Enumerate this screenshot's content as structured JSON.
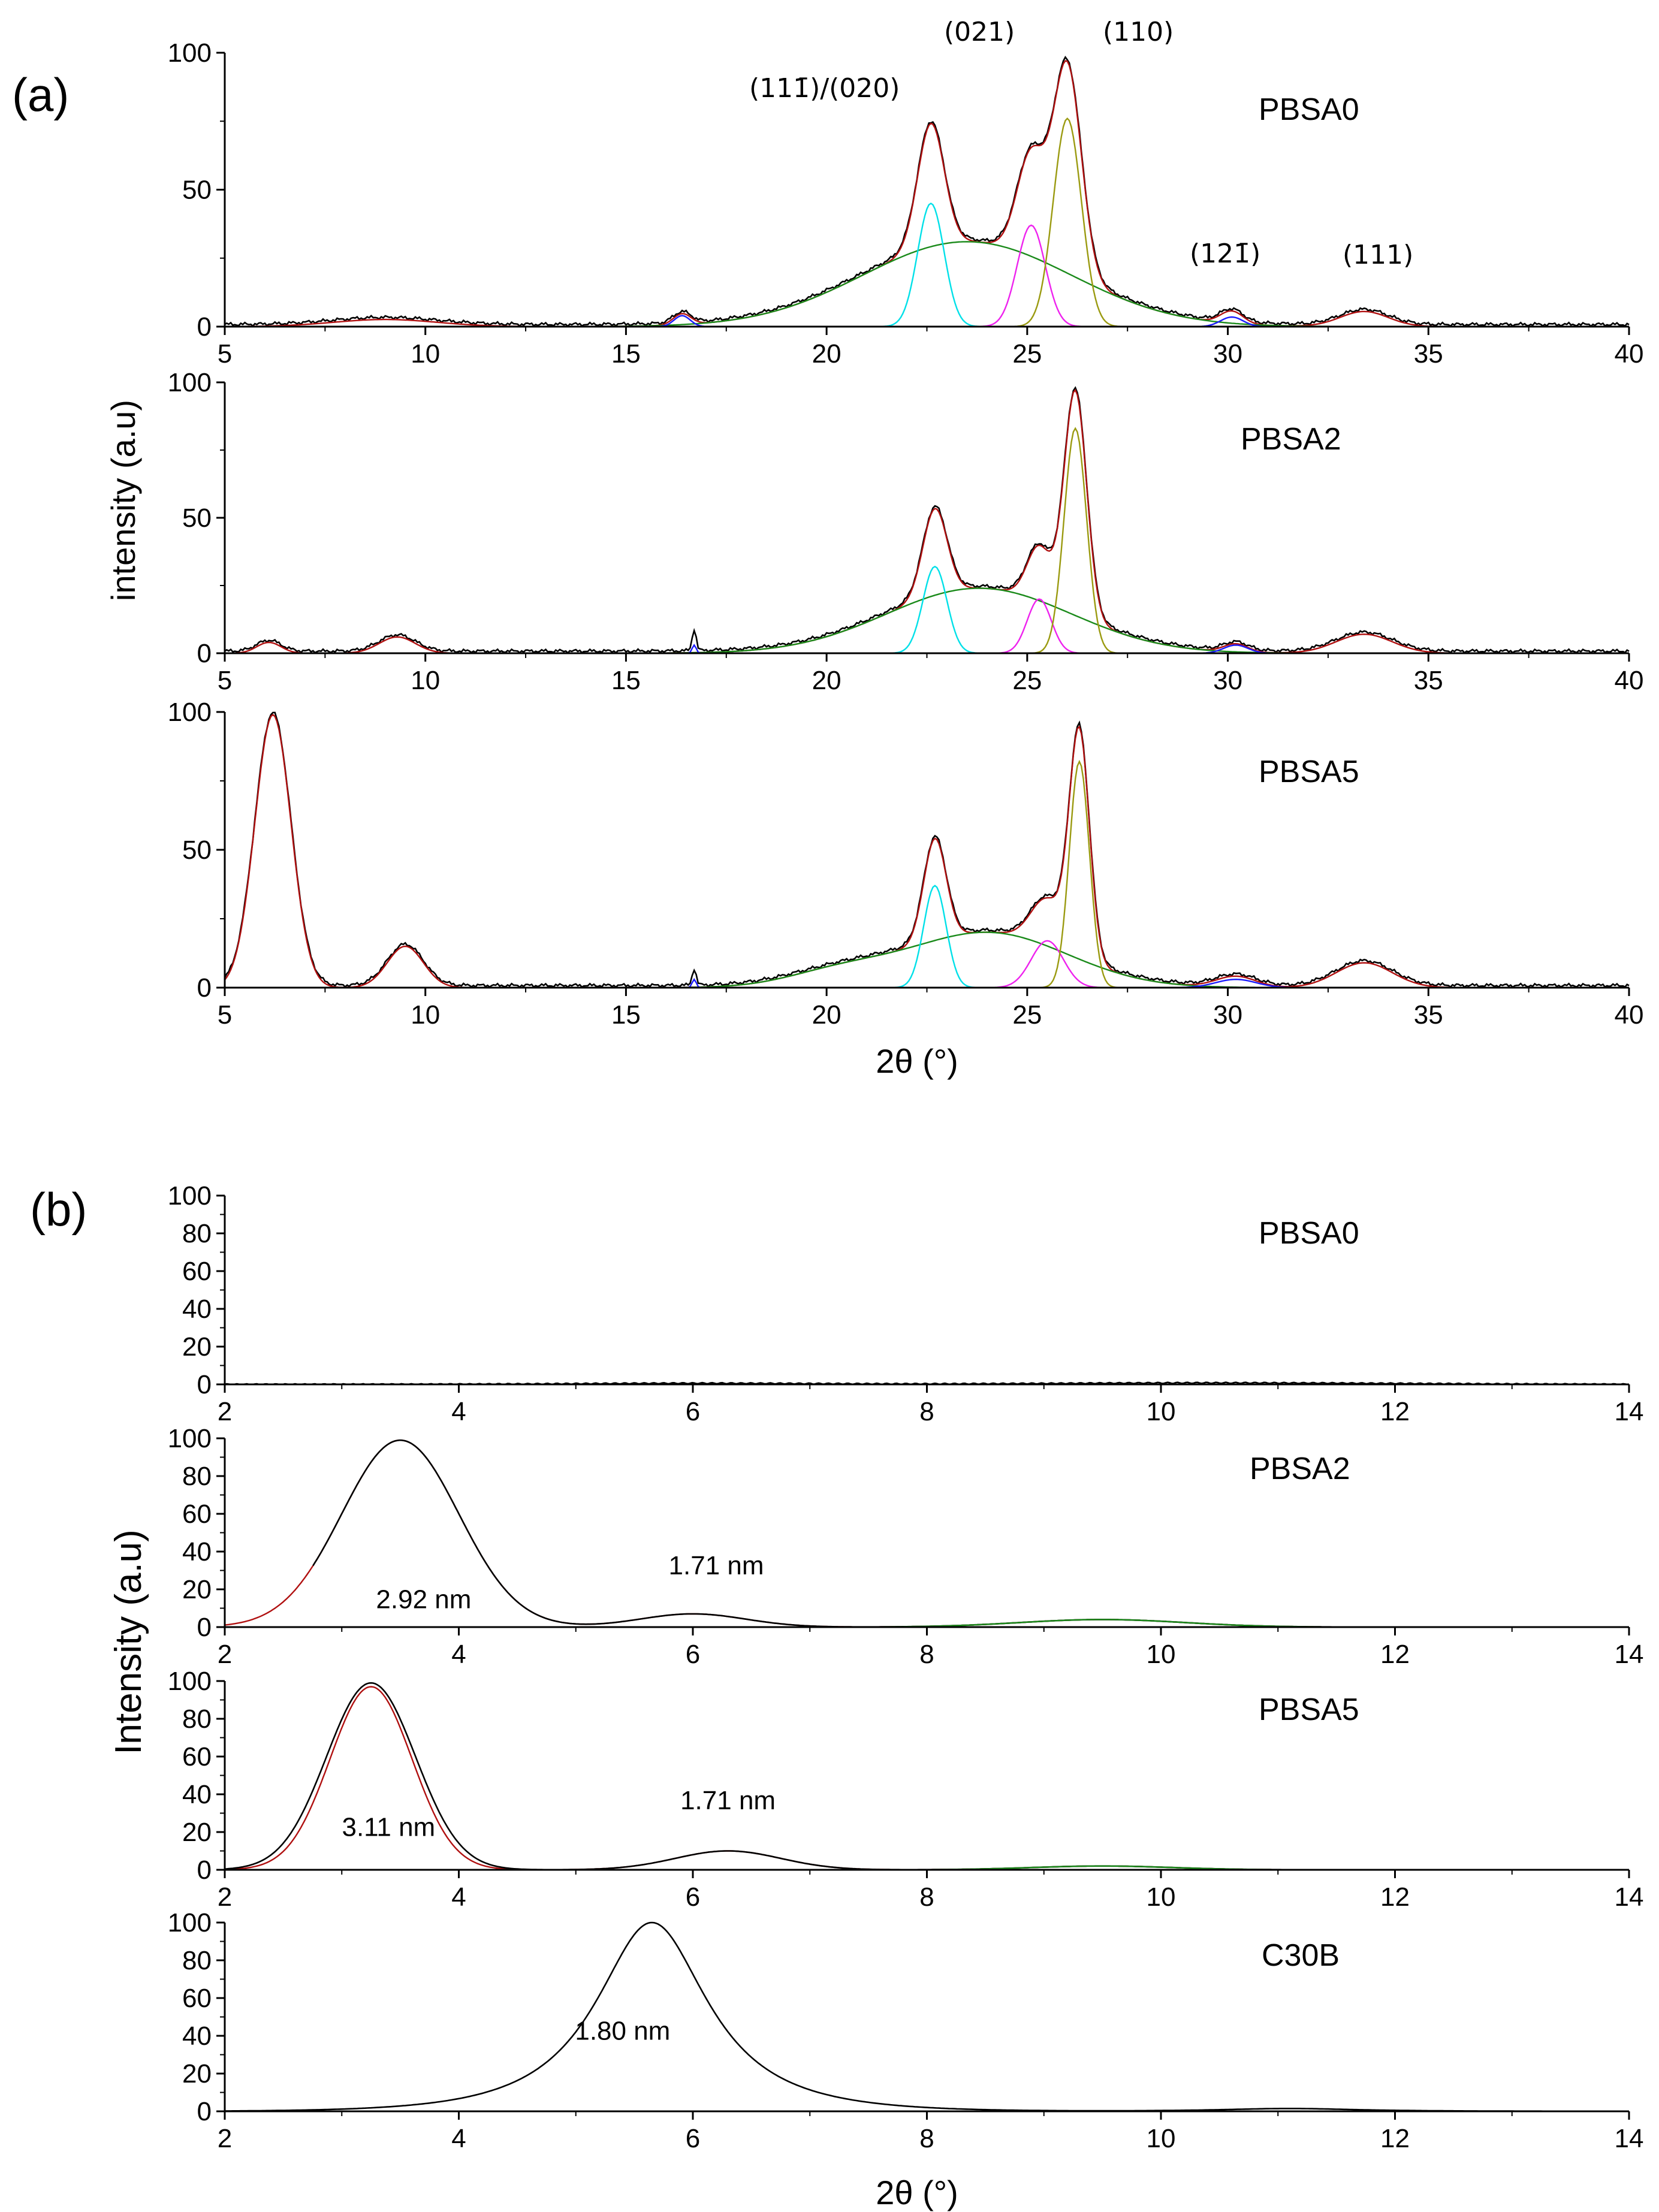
{
  "panel_a": {
    "label": "(a)",
    "ylabel": "intensity (a.u)",
    "xlabel": "2θ (°)",
    "peak_labels": [
      "(111̄)/(020)",
      "(021)",
      "(110)",
      "(121̄)",
      "(111)"
    ]
  },
  "panel_b": {
    "label": "(b)",
    "ylabel": "Intensity (a.u)",
    "xlabel": "2θ (°)"
  },
  "colors": {
    "data": "#000000",
    "fit": "#b01010",
    "amorphous": "#1a8a1a",
    "cyan": "#00e0e8",
    "magenta": "#ee22ee",
    "olive": "#9a9a10",
    "blue": "#1a1aff",
    "purple": "#8a1aa0"
  },
  "chart_data": [
    {
      "type": "line",
      "title": "PBSA0",
      "panel": "a",
      "xlim": [
        5,
        40
      ],
      "ylim": [
        0,
        100
      ],
      "xticks": [
        5,
        10,
        15,
        20,
        25,
        30,
        35,
        40
      ],
      "yticks": [
        0,
        50,
        100
      ],
      "series": [
        {
          "name": "observed",
          "color": "data",
          "peaks": [
            [
              2.6,
              9.0,
              1.3
            ],
            [
              4,
              16.4,
              0.22
            ],
            [
              31,
              23.5,
              2.6
            ],
            [
              45,
              22.6,
              0.33
            ],
            [
              37,
              25.1,
              0.35
            ],
            [
              76,
              26.0,
              0.35
            ],
            [
              4.5,
              30.1,
              0.28
            ],
            [
              5.5,
              33.4,
              0.6
            ]
          ]
        },
        {
          "name": "fit",
          "color": "fit",
          "peaks": [
            [
              2.6,
              9.0,
              1.3
            ],
            [
              4,
              16.4,
              0.22
            ],
            [
              31,
              23.5,
              2.6
            ],
            [
              45,
              22.6,
              0.33
            ],
            [
              37,
              25.1,
              0.35
            ],
            [
              76,
              26.0,
              0.35
            ],
            [
              4.5,
              30.1,
              0.28
            ],
            [
              5.5,
              33.4,
              0.6
            ]
          ]
        },
        {
          "name": "amorphous",
          "color": "amorphous",
          "peaks": [
            [
              31,
              23.5,
              2.6
            ]
          ]
        },
        {
          "name": "(111̄)/(020)",
          "color": "cyan",
          "peaks": [
            [
              45,
              22.6,
              0.33
            ]
          ]
        },
        {
          "name": "(021)",
          "color": "magenta",
          "peaks": [
            [
              37,
              25.1,
              0.35
            ]
          ]
        },
        {
          "name": "(110)",
          "color": "olive",
          "peaks": [
            [
              76,
              26.0,
              0.35
            ]
          ]
        },
        {
          "name": "minor",
          "color": "blue",
          "peaks": [
            [
              4,
              16.4,
              0.2
            ],
            [
              3.5,
              30.1,
              0.28
            ]
          ]
        }
      ]
    },
    {
      "type": "line",
      "title": "PBSA2",
      "panel": "a",
      "xlim": [
        5,
        40
      ],
      "ylim": [
        0,
        100
      ],
      "xticks": [
        5,
        10,
        15,
        20,
        25,
        30,
        35,
        40
      ],
      "yticks": [
        0,
        50,
        100
      ],
      "series": [
        {
          "name": "observed",
          "color": "data",
          "peaks": [
            [
              4,
              6.1,
              0.3
            ],
            [
              6,
              9.3,
              0.45
            ],
            [
              8,
              16.7,
              0.05
            ],
            [
              24,
              23.8,
              2.3
            ],
            [
              32,
              22.7,
              0.3
            ],
            [
              20,
              25.3,
              0.3
            ],
            [
              83,
              26.2,
              0.28
            ],
            [
              3,
              30.2,
              0.3
            ],
            [
              7,
              33.4,
              0.7
            ]
          ]
        },
        {
          "name": "fit",
          "color": "fit",
          "peaks": [
            [
              4,
              6.1,
              0.3
            ],
            [
              6,
              9.3,
              0.45
            ],
            [
              24,
              23.8,
              2.3
            ],
            [
              32,
              22.7,
              0.3
            ],
            [
              20,
              25.3,
              0.3
            ],
            [
              83,
              26.2,
              0.28
            ],
            [
              3,
              30.2,
              0.3
            ],
            [
              7,
              33.4,
              0.7
            ]
          ]
        },
        {
          "name": "amorphous",
          "color": "amorphous",
          "peaks": [
            [
              24,
              23.8,
              2.3
            ]
          ]
        },
        {
          "name": "(111̄)/(020)",
          "color": "cyan",
          "peaks": [
            [
              32,
              22.7,
              0.3
            ]
          ]
        },
        {
          "name": "(021)",
          "color": "magenta",
          "peaks": [
            [
              20,
              25.3,
              0.3
            ]
          ]
        },
        {
          "name": "(110)",
          "color": "olive",
          "peaks": [
            [
              83,
              26.2,
              0.28
            ]
          ]
        },
        {
          "name": "minor",
          "color": "blue",
          "peaks": [
            [
              3,
              16.7,
              0.05
            ],
            [
              3,
              30.2,
              0.3
            ]
          ]
        }
      ]
    },
    {
      "type": "line",
      "title": "PBSA5",
      "panel": "a",
      "xlim": [
        5,
        40
      ],
      "ylim": [
        0,
        100
      ],
      "xticks": [
        5,
        10,
        15,
        20,
        25,
        30,
        35,
        40
      ],
      "yticks": [
        0,
        50,
        100
      ],
      "series": [
        {
          "name": "observed",
          "color": "data",
          "peaks": [
            [
              99,
              6.2,
              0.45
            ],
            [
              15,
              9.5,
              0.45
            ],
            [
              6,
              16.7,
              0.05
            ],
            [
              20,
              24.0,
              2.0
            ],
            [
              5,
              20.3,
              1.3
            ],
            [
              37,
              22.7,
              0.28
            ],
            [
              17,
              25.5,
              0.4
            ],
            [
              82,
              26.3,
              0.25
            ],
            [
              4,
              30.2,
              0.5
            ],
            [
              9,
              33.4,
              0.7
            ]
          ]
        },
        {
          "name": "fit",
          "color": "fit",
          "peaks": [
            [
              99,
              6.2,
              0.45
            ],
            [
              15,
              9.5,
              0.45
            ],
            [
              20,
              24.0,
              2.0
            ],
            [
              5,
              20.3,
              1.3
            ],
            [
              37,
              22.7,
              0.28
            ],
            [
              17,
              25.5,
              0.4
            ],
            [
              82,
              26.3,
              0.25
            ],
            [
              4,
              30.2,
              0.5
            ],
            [
              9,
              33.4,
              0.7
            ]
          ]
        },
        {
          "name": "amorphous",
          "color": "amorphous",
          "peaks": [
            [
              20,
              24.0,
              2.0
            ],
            [
              5,
              20.3,
              1.3
            ]
          ]
        },
        {
          "name": "(111̄)/(020)",
          "color": "cyan",
          "peaks": [
            [
              37,
              22.7,
              0.28
            ]
          ]
        },
        {
          "name": "(021)",
          "color": "magenta",
          "peaks": [
            [
              17,
              25.5,
              0.4
            ]
          ]
        },
        {
          "name": "(110)",
          "color": "olive",
          "peaks": [
            [
              82,
              26.3,
              0.25
            ]
          ]
        },
        {
          "name": "minor",
          "color": "blue",
          "peaks": [
            [
              3,
              16.7,
              0.05
            ],
            [
              3,
              30.2,
              0.5
            ]
          ]
        }
      ]
    },
    {
      "type": "line",
      "title": "PBSA0",
      "panel": "b",
      "xlim": [
        2,
        14
      ],
      "ylim": [
        0,
        100
      ],
      "xticks": [
        2,
        4,
        6,
        8,
        10,
        12,
        14
      ],
      "yticks": [
        0,
        20,
        40,
        60,
        80,
        100
      ],
      "annotations": [],
      "series": [
        {
          "name": "observed",
          "color": "data",
          "peaks": [
            [
              0.6,
              6.0,
              1.0
            ],
            [
              0.8,
              10.5,
              1.5
            ]
          ]
        }
      ]
    },
    {
      "type": "line",
      "title": "PBSA2",
      "panel": "b",
      "xlim": [
        2,
        14
      ],
      "ylim": [
        0,
        100
      ],
      "xticks": [
        2,
        4,
        6,
        8,
        10,
        12,
        14
      ],
      "yticks": [
        0,
        20,
        40,
        60,
        80,
        100
      ],
      "annotations": [
        {
          "text": "2.92 nm",
          "x": 3.7,
          "y": 10
        },
        {
          "text": "1.71 nm",
          "x": 6.2,
          "y": 28
        }
      ],
      "series": [
        {
          "name": "fit",
          "color": "fit",
          "peaks": [
            [
              99,
              3.5,
              0.5
            ],
            [
              7,
              6.0,
              0.45
            ],
            [
              4,
              9.5,
              0.7
            ]
          ]
        },
        {
          "name": "observed",
          "color": "data",
          "peaks": [
            [
              99,
              3.5,
              0.5
            ],
            [
              7,
              6.0,
              0.45
            ],
            [
              4,
              9.5,
              0.7
            ]
          ],
          "cut": 2.75
        },
        {
          "name": "component",
          "color": "amorphous",
          "peaks": [
            [
              4,
              9.5,
              0.7
            ]
          ]
        },
        {
          "name": "baseline",
          "color": "blue",
          "peaks": [],
          "range": [
            2,
            7
          ]
        }
      ]
    },
    {
      "type": "line",
      "title": "PBSA5",
      "panel": "b",
      "xlim": [
        2,
        14
      ],
      "ylim": [
        0,
        100
      ],
      "xticks": [
        2,
        4,
        6,
        8,
        10,
        12,
        14
      ],
      "yticks": [
        0,
        20,
        40,
        60,
        80,
        100
      ],
      "annotations": [
        {
          "text": "3.11 nm",
          "x": 3.4,
          "y": 18
        },
        {
          "text": "1.71 nm",
          "x": 6.3,
          "y": 32
        }
      ],
      "series": [
        {
          "name": "fit",
          "color": "fit",
          "peaks": [
            [
              97,
              3.25,
              0.35
            ],
            [
              10,
              6.3,
              0.45
            ],
            [
              2,
              9.5,
              0.6
            ]
          ]
        },
        {
          "name": "observed",
          "color": "data",
          "peaks": [
            [
              99,
              3.25,
              0.38
            ],
            [
              10,
              6.3,
              0.45
            ],
            [
              2,
              9.5,
              0.6
            ]
          ]
        },
        {
          "name": "component",
          "color": "amorphous",
          "peaks": [
            [
              2,
              9.5,
              0.6
            ]
          ]
        },
        {
          "name": "baseline",
          "color": "blue",
          "peaks": [],
          "range": [
            2,
            7.4
          ]
        }
      ]
    },
    {
      "type": "line",
      "title": "C30B",
      "panel": "b",
      "xlim": [
        2,
        14
      ],
      "ylim": [
        0,
        100
      ],
      "xticks": [
        2,
        4,
        6,
        8,
        10,
        12,
        14
      ],
      "yticks": [
        0,
        20,
        40,
        60,
        80,
        100
      ],
      "annotations": [
        {
          "text": "1.80 nm",
          "x": 5.4,
          "y": 38
        }
      ],
      "series": [
        {
          "name": "observed",
          "color": "data",
          "peaks": [
            [
              100,
              5.65,
              0.5
            ],
            [
              1.5,
              11.1,
              0.6
            ]
          ],
          "lorentz": true
        }
      ]
    }
  ]
}
